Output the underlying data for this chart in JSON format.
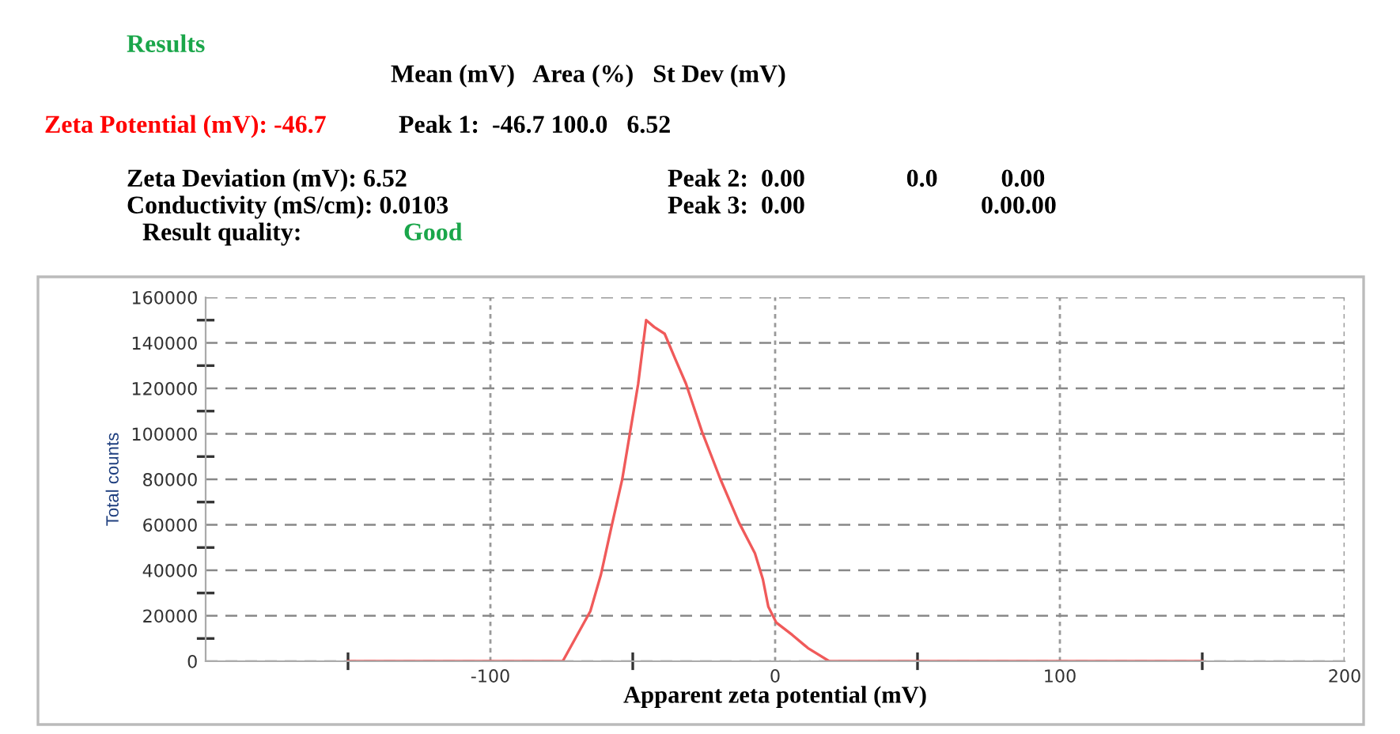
{
  "chart_data": {
    "type": "line",
    "title": "Results",
    "xlabel": "Apparent zeta potential (mV)",
    "ylabel": "Total counts",
    "annotations": [
      "Mean (mV)   Area (%)   St Dev (mV)",
      "Zeta Potential (mV): -46.7",
      "Peak 1:  -46.7 100.0   6.52",
      "Zeta Deviation (mV): 6.52",
      "Peak 2:  0.00                0.0          0.00",
      "Conductivity (mS/cm): 0.0103",
      "Peak 3:  0.00",
      "0.00.00",
      "Result quality:",
      "Good"
    ],
    "series": [
      {
        "color": "#f05a5a",
        "x": [
          -150,
          -74.6,
          -64.9,
          -61.2,
          -57.5,
          -53.7,
          -50.9,
          -48.1,
          -45.3,
          -42.5,
          -38.8,
          -35.1,
          -31.3,
          -25.7,
          -19.2,
          -12.7,
          -7.1,
          -4.3,
          -2.4,
          0.4,
          6.0,
          11.5,
          19,
          150
        ],
        "values": [
          0,
          0,
          22000,
          38000,
          59000,
          80000,
          101000,
          122000,
          150000,
          147000,
          144000,
          133000,
          122000,
          101000,
          80000,
          61000,
          47500,
          36000,
          24000,
          17000,
          11600,
          5800,
          0,
          0
        ]
      }
    ],
    "xlim": [
      -200,
      200
    ],
    "xticks": [
      {
        "value": -150,
        "label": null
      },
      -100,
      {
        "value": -50,
        "label": null
      },
      0,
      {
        "value": 50,
        "label": null
      },
      100,
      {
        "value": 150,
        "label": null
      },
      200
    ],
    "ylim": [
      0,
      160000
    ],
    "yticks": [
      0,
      {
        "value": 10000,
        "label": null
      },
      20000,
      {
        "value": 30000,
        "label": null
      },
      40000,
      {
        "value": 50000,
        "label": null
      },
      60000,
      {
        "value": 70000,
        "label": null
      },
      80000,
      {
        "value": 90000,
        "label": null
      },
      100000,
      {
        "value": 110000,
        "label": null
      },
      120000,
      {
        "value": 130000,
        "label": null
      },
      140000,
      {
        "value": 150000,
        "label": null
      },
      160000
    ],
    "grid": true,
    "legend": false,
    "marker": "none",
    "line_style": "solid"
  }
}
